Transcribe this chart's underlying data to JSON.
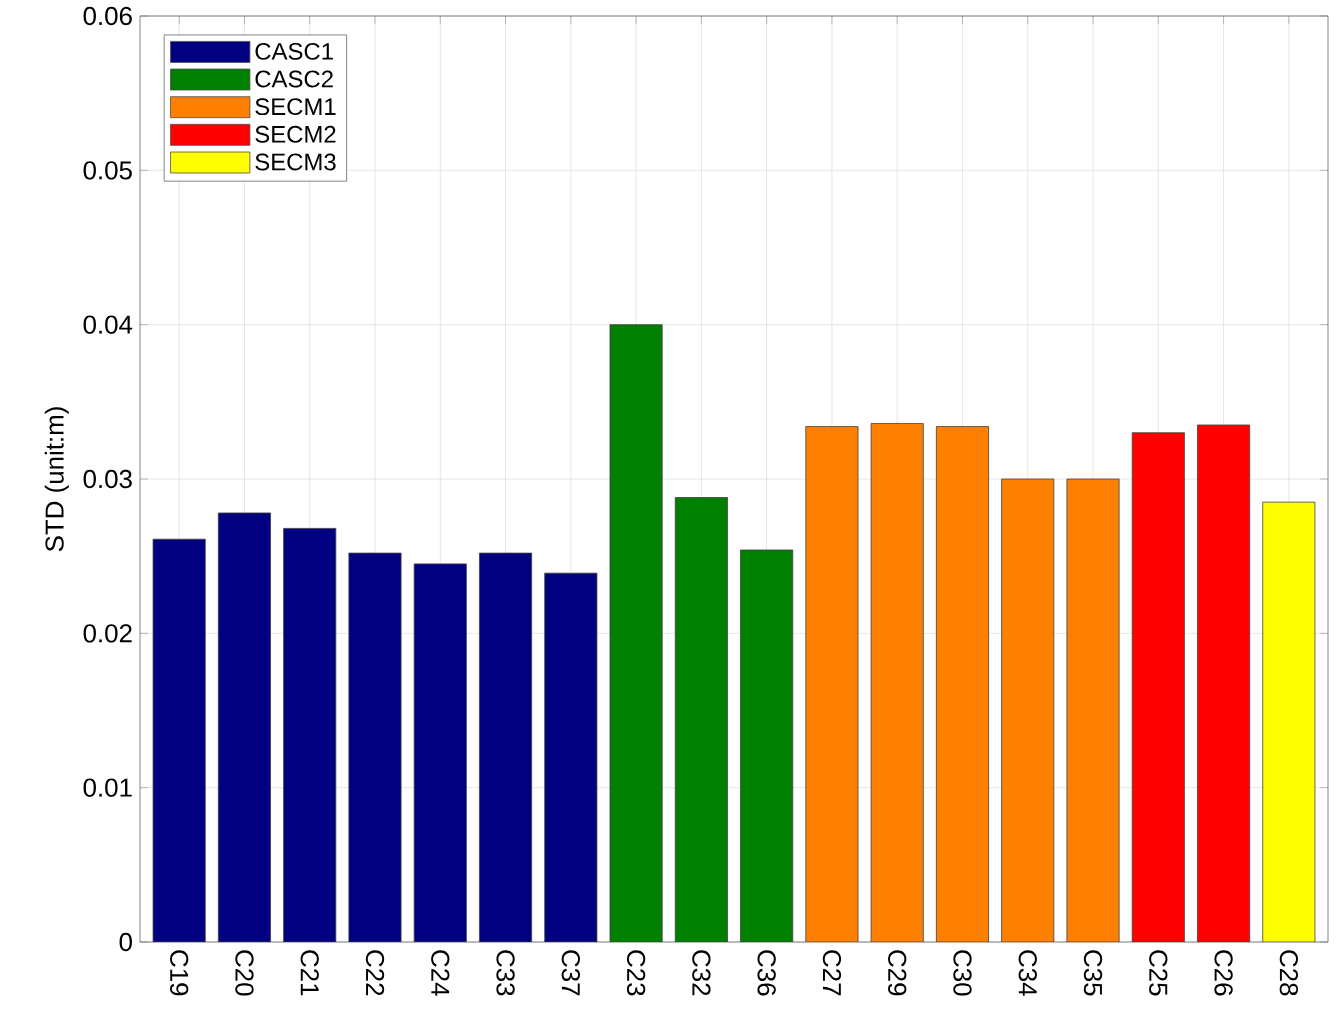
{
  "chart_data": {
    "type": "bar",
    "ylabel": "STD (unit:m)",
    "categories": [
      "C19",
      "C20",
      "C21",
      "C22",
      "C24",
      "C33",
      "C37",
      "C23",
      "C32",
      "C36",
      "C27",
      "C29",
      "C30",
      "C34",
      "C35",
      "C25",
      "C26",
      "C28"
    ],
    "series": [
      {
        "name": "CASC1",
        "color": "#000080",
        "values": [
          0.0261,
          0.0278,
          0.0268,
          0.0252,
          0.0245,
          0.0252,
          0.0239,
          null,
          null,
          null,
          null,
          null,
          null,
          null,
          null,
          null,
          null,
          null
        ]
      },
      {
        "name": "CASC2",
        "color": "#008000",
        "values": [
          null,
          null,
          null,
          null,
          null,
          null,
          null,
          0.04,
          0.0288,
          0.0254,
          null,
          null,
          null,
          null,
          null,
          null,
          null,
          null
        ]
      },
      {
        "name": "SECM1",
        "color": "#ff8000",
        "values": [
          null,
          null,
          null,
          null,
          null,
          null,
          null,
          null,
          null,
          null,
          0.0334,
          0.0336,
          0.0334,
          0.03,
          0.03,
          null,
          null,
          null
        ]
      },
      {
        "name": "SECM2",
        "color": "#ff0000",
        "values": [
          null,
          null,
          null,
          null,
          null,
          null,
          null,
          null,
          null,
          null,
          null,
          null,
          null,
          null,
          null,
          0.033,
          0.0335,
          null
        ]
      },
      {
        "name": "SECM3",
        "color": "#ffff00",
        "values": [
          null,
          null,
          null,
          null,
          null,
          null,
          null,
          null,
          null,
          null,
          null,
          null,
          null,
          null,
          null,
          null,
          null,
          0.0285
        ]
      }
    ],
    "ylim": [
      0,
      0.06
    ],
    "yticks": [
      0,
      0.01,
      0.02,
      0.03,
      0.04,
      0.05,
      0.06
    ],
    "grid": true,
    "legend": "top left"
  }
}
